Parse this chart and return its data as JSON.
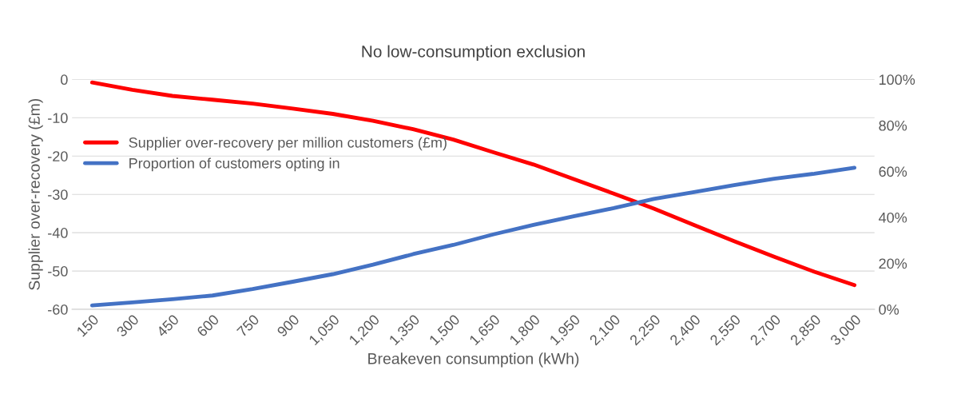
{
  "chart_data": {
    "type": "line",
    "title": "No low-consumption exclusion",
    "xlabel": "Breakeven consumption (kWh)",
    "ylabel": "Supplier over-recovery (£m)",
    "categories": [
      "150",
      "300",
      "450",
      "600",
      "750",
      "900",
      "1,050",
      "1,200",
      "1,350",
      "1,500",
      "1,650",
      "1,800",
      "1,950",
      "2,100",
      "2,250",
      "2,400",
      "2,550",
      "2,700",
      "2,850",
      "3,000"
    ],
    "series": [
      {
        "name": "Supplier over-recovery per million customers (£m)",
        "color": "#ff0000",
        "values": [
          -0.8,
          -2.7,
          -4.3,
          -5.3,
          -6.3,
          -7.6,
          -9,
          -10.8,
          -13,
          -15.7,
          -19,
          -22.2,
          -26,
          -29.8,
          -33.7,
          -38,
          -42.2,
          -46.3,
          -50.2,
          -53.7
        ]
      },
      {
        "name": "Proportion of customers opting in",
        "color": "#4472c4",
        "axis": "y2",
        "values": [
          1.7,
          3,
          4.4,
          6,
          8.8,
          12,
          15.3,
          19.4,
          24,
          28,
          32.6,
          36.7,
          40.5,
          44,
          48,
          51,
          54,
          56.8,
          59,
          61.6
        ]
      }
    ],
    "ylim": [
      -60,
      0
    ],
    "yticks": [
      -60,
      -50,
      -40,
      -30,
      -20,
      -10,
      0
    ],
    "y2lim": [
      0,
      100
    ],
    "y2ticks": [
      {
        "value": 0,
        "label": "0%"
      },
      {
        "value": 20,
        "label": "20%"
      },
      {
        "value": 40,
        "label": "40%"
      },
      {
        "value": 60,
        "label": "60%"
      },
      {
        "value": 80,
        "label": "80%"
      },
      {
        "value": 100,
        "label": "100%"
      }
    ],
    "grid": "y",
    "legend": "left",
    "marker": "none",
    "line_style": "solid"
  }
}
